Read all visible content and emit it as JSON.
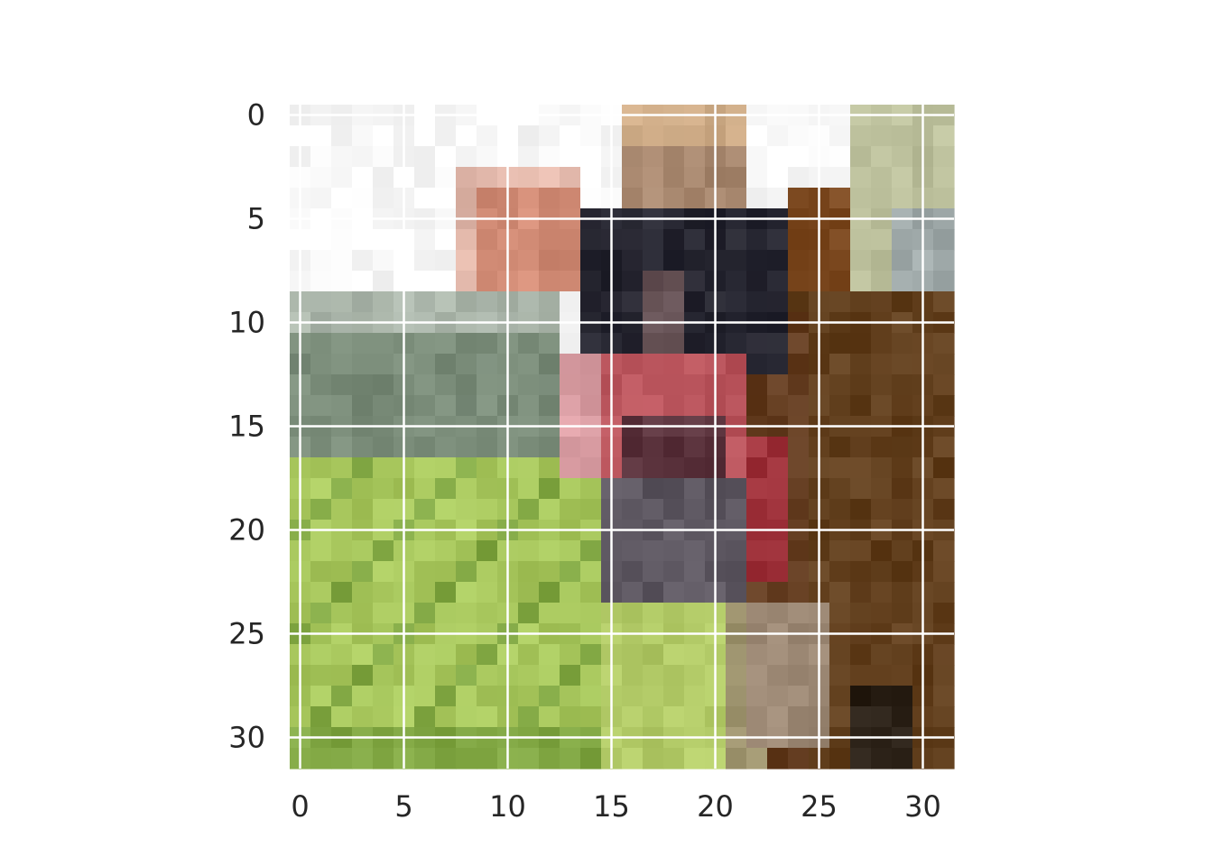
{
  "chart_data": {
    "type": "heatmap",
    "title": "",
    "xlabel": "",
    "ylabel": "",
    "image_size": [
      32,
      32
    ],
    "xlim": [
      -0.5,
      31.5
    ],
    "ylim": [
      31.5,
      -0.5
    ],
    "grid": true,
    "x_ticks": [
      0,
      5,
      10,
      15,
      20,
      25,
      30
    ],
    "y_ticks": [
      0,
      5,
      10,
      15,
      20,
      25,
      30
    ],
    "x_tick_labels": [
      "0",
      "5",
      "10",
      "15",
      "20",
      "25",
      "30"
    ],
    "y_tick_labels": [
      "0",
      "5",
      "10",
      "15",
      "20",
      "25",
      "30"
    ],
    "colors": {
      "grid": "#ffffff",
      "tick_text": "#262626",
      "sky": "#fbfbfb",
      "ear_pink": "#d08a74",
      "face_dark": "#1c1f2b",
      "nose_red": "#b3474f",
      "mouth_grey": "#5c5660",
      "horse_brown": "#5a3c1c",
      "grass_light": "#b5d266",
      "grass_dark": "#5e8a2c",
      "trees": "#6b7f6a"
    }
  }
}
